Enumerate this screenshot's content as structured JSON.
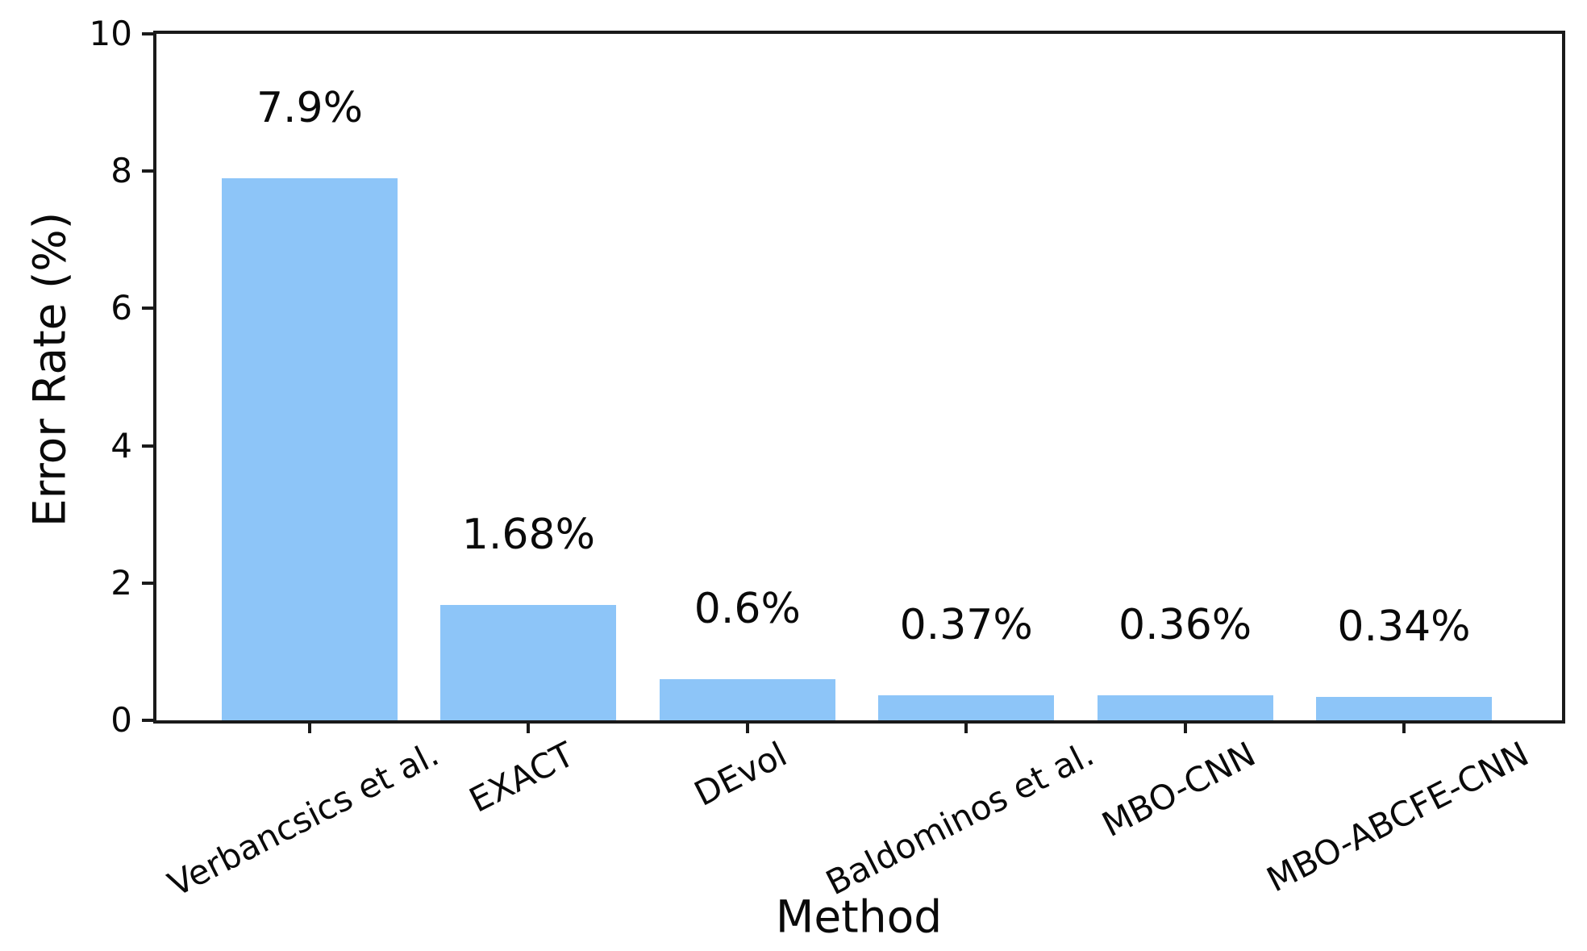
{
  "chart_data": {
    "type": "bar",
    "title": "",
    "xlabel": "Method",
    "ylabel": "Error Rate (%)",
    "categories": [
      "Verbancsics et al.",
      "EXACT",
      "DEvol",
      "Baldominos et al.",
      "MBO-CNN",
      "MBO-ABCFE-CNN"
    ],
    "values": [
      7.9,
      1.68,
      0.6,
      0.37,
      0.36,
      0.34
    ],
    "bar_labels": [
      "7.9%",
      "1.68%",
      "0.6%",
      "0.37%",
      "0.36%",
      "0.34%"
    ],
    "ylim": [
      0,
      10
    ],
    "yticks": [
      0,
      2,
      4,
      6,
      8,
      10
    ],
    "x_tick_rotation_deg": 27,
    "grid": false,
    "legend": "none",
    "bar_color": "#8dc5f8",
    "axis_color": "#1a1a1a",
    "text_color": "#0a0a0a",
    "background_color": "#ffffff"
  }
}
